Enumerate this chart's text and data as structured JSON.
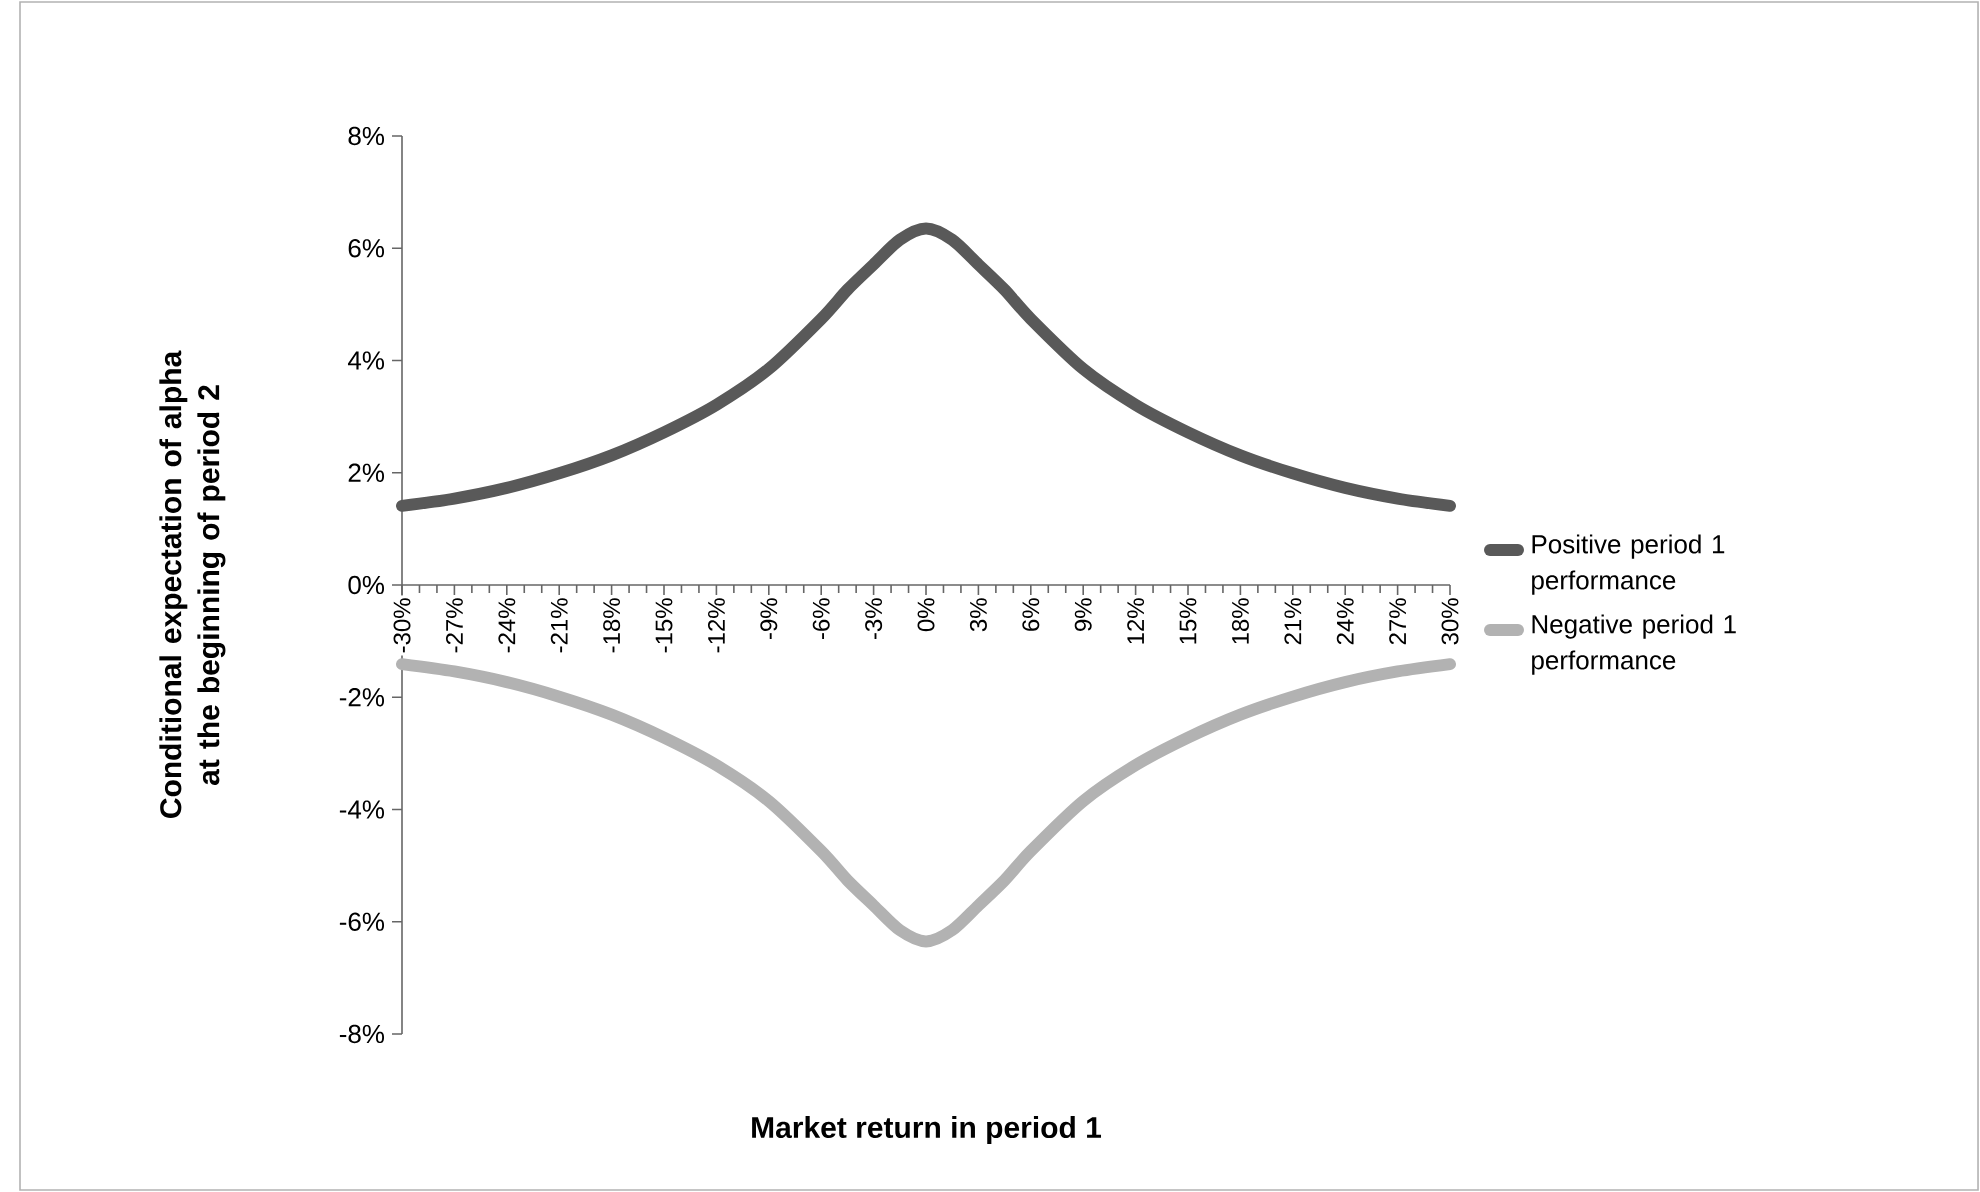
{
  "chart_data": {
    "type": "line",
    "xlabel": "Market return in period 1",
    "ylabel": "Conditional expectation of alpha at the beginning of period 2",
    "x": [
      -30,
      -27,
      -24,
      -21,
      -18,
      -15,
      -12,
      -9,
      -6,
      -4.5,
      -3,
      -1.5,
      0,
      1.5,
      3,
      4.5,
      6,
      9,
      12,
      15,
      18,
      21,
      24,
      27,
      30
    ],
    "series": [
      {
        "name": "Positive period 1 performance",
        "color": "#595959",
        "values": [
          1.41,
          1.54,
          1.73,
          1.99,
          2.31,
          2.72,
          3.21,
          3.85,
          4.74,
          5.26,
          5.71,
          6.15,
          6.35,
          6.15,
          5.71,
          5.26,
          4.74,
          3.85,
          3.21,
          2.72,
          2.31,
          1.99,
          1.73,
          1.54,
          1.41
        ]
      },
      {
        "name": "Negative period 1 performance",
        "color": "#b2b2b2",
        "values": [
          -1.41,
          -1.54,
          -1.73,
          -1.99,
          -2.31,
          -2.72,
          -3.21,
          -3.85,
          -4.74,
          -5.26,
          -5.71,
          -6.15,
          -6.35,
          -6.15,
          -5.71,
          -5.26,
          -4.74,
          -3.85,
          -3.21,
          -2.72,
          -2.31,
          -1.99,
          -1.73,
          -1.54,
          -1.41
        ]
      }
    ],
    "xlim": [
      -30,
      30
    ],
    "xticks": [
      {
        "value": -30,
        "label": "-30%"
      },
      {
        "value": -27,
        "label": "-27%"
      },
      {
        "value": -24,
        "label": "-24%"
      },
      {
        "value": -21,
        "label": "-21%"
      },
      {
        "value": -18,
        "label": "-18%"
      },
      {
        "value": -15,
        "label": "-15%"
      },
      {
        "value": -12,
        "label": "-12%"
      },
      {
        "value": -9,
        "label": "-9%"
      },
      {
        "value": -6,
        "label": "-6%"
      },
      {
        "value": -3,
        "label": "-3%"
      },
      {
        "value": 0,
        "label": "0%"
      },
      {
        "value": 3,
        "label": "3%"
      },
      {
        "value": 6,
        "label": "6%"
      },
      {
        "value": 9,
        "label": "9%"
      },
      {
        "value": 12,
        "label": "12%"
      },
      {
        "value": 15,
        "label": "15%"
      },
      {
        "value": 18,
        "label": "18%"
      },
      {
        "value": 21,
        "label": "21%"
      },
      {
        "value": 24,
        "label": "24%"
      },
      {
        "value": 27,
        "label": "27%"
      },
      {
        "value": 30,
        "label": "30%"
      }
    ],
    "ylim": [
      -8,
      8
    ],
    "yticks": [
      {
        "value": -8,
        "label": "-8%"
      },
      {
        "value": -6,
        "label": "-6%"
      },
      {
        "value": -4,
        "label": "-4%"
      },
      {
        "value": -2,
        "label": "-2%"
      },
      {
        "value": 0,
        "label": "0%"
      },
      {
        "value": 2,
        "label": "2%"
      },
      {
        "value": 4,
        "label": "4%"
      },
      {
        "value": 6,
        "label": "6%"
      },
      {
        "value": 8,
        "label": "8%"
      }
    ],
    "legend": "right"
  }
}
